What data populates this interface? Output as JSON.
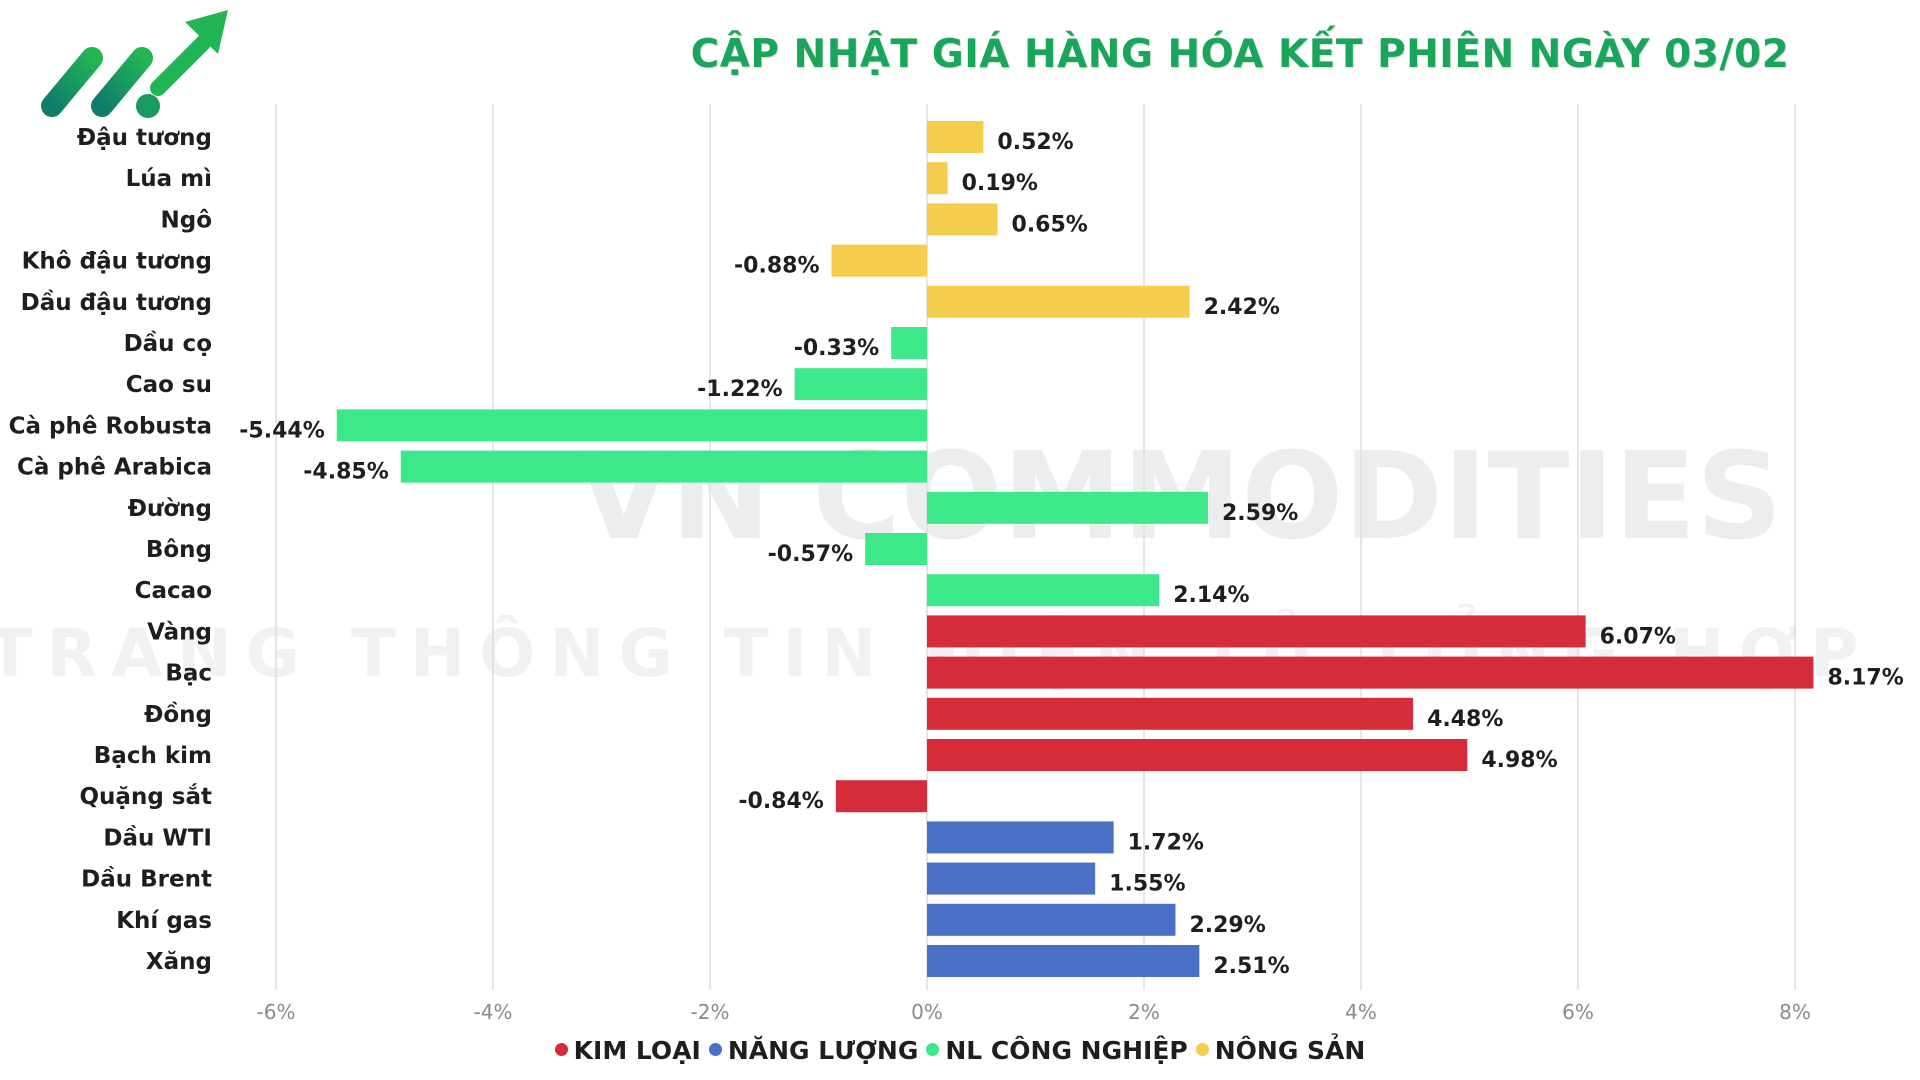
{
  "title": "CẬP NHẬT GIÁ HÀNG HÓA KẾT PHIÊN NGÀY 03/02",
  "watermark": {
    "line1": "VN COMMODITIES",
    "line2": "TRANG THÔNG TIN ĐIỆN TỬ TỔNG HỢP"
  },
  "logo_icon": "trend-up-arrow-logo",
  "groups": [
    {
      "name": "KIM LOẠI",
      "color": "#d62b3a"
    },
    {
      "name": "NĂNG LƯỢNG",
      "color": "#4a6fc7"
    },
    {
      "name": "NL CÔNG NGHIỆP",
      "color": "#3de88a"
    },
    {
      "name": "NÔNG SẢN",
      "color": "#f5cd4c"
    }
  ],
  "chart_data": {
    "type": "bar",
    "orientation": "horizontal",
    "categories": [
      "Đậu tương",
      "Lúa mì",
      "Ngô",
      "Khô đậu tương",
      "Dầu đậu tương",
      "Dầu cọ",
      "Cao su",
      "Cà phê Robusta",
      "Cà phê Arabica",
      "Đường",
      "Bông",
      "Cacao",
      "Vàng",
      "Bạc",
      "Đồng",
      "Bạch kim",
      "Quặng sắt",
      "Dầu WTI",
      "Dầu Brent",
      "Khí gas",
      "Xăng"
    ],
    "values": [
      0.52,
      0.19,
      0.65,
      -0.88,
      2.42,
      -0.33,
      -1.22,
      -5.44,
      -4.85,
      2.59,
      -0.57,
      2.14,
      6.07,
      8.17,
      4.48,
      4.98,
      -0.84,
      1.72,
      1.55,
      2.29,
      2.51
    ],
    "value_labels": [
      "0.52%",
      "0.19%",
      "0.65%",
      "-0.88%",
      "2.42%",
      "-0.33%",
      "-1.22%",
      "-5.44%",
      "-4.85%",
      "2.59%",
      "-0.57%",
      "2.14%",
      "6.07%",
      "8.17%",
      "4.48%",
      "4.98%",
      "-0.84%",
      "1.72%",
      "1.55%",
      "2.29%",
      "2.51%"
    ],
    "group_index": [
      3,
      3,
      3,
      3,
      3,
      2,
      2,
      2,
      2,
      2,
      2,
      2,
      0,
      0,
      0,
      0,
      0,
      1,
      1,
      1,
      1
    ],
    "xlim": [
      -6,
      8
    ],
    "xticks": [
      -6,
      -4,
      -2,
      0,
      2,
      4,
      6,
      8
    ],
    "xtick_labels": [
      "-6%",
      "-4%",
      "-2%",
      "0%",
      "2%",
      "4%",
      "6%",
      "8%"
    ],
    "grid": "vertical",
    "legend_position": "bottom-center"
  }
}
